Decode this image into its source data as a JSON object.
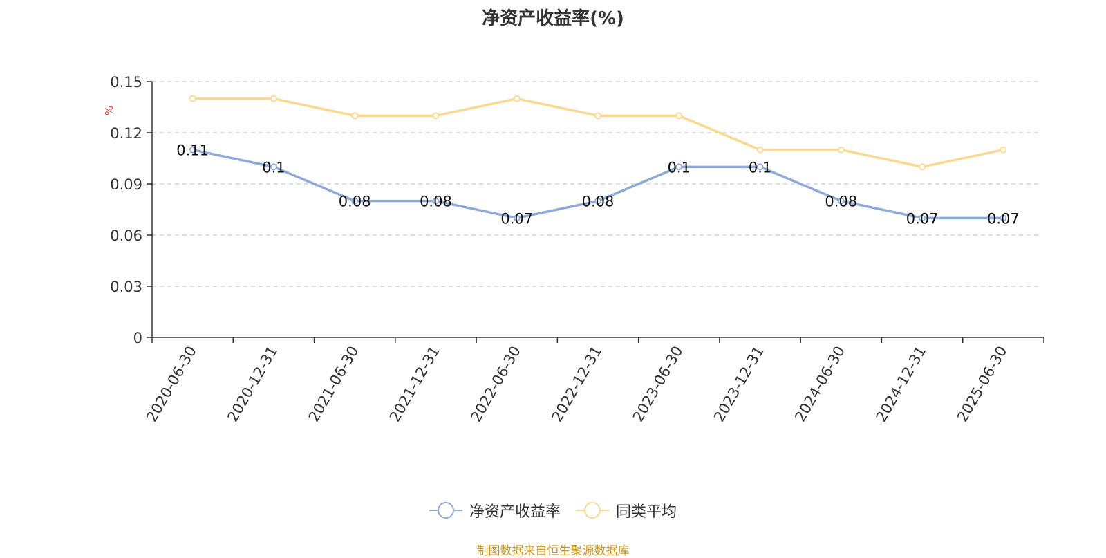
{
  "chart_data": {
    "type": "line",
    "title": "净资产收益率(%)",
    "ylabel": "%",
    "xlabel": "",
    "x": [
      "2020-06-30",
      "2020-12-31",
      "2021-06-30",
      "2021-12-31",
      "2022-06-30",
      "2022-12-31",
      "2023-06-30",
      "2023-12-31",
      "2024-06-30",
      "2024-12-31",
      "2025-06-30"
    ],
    "ylim": [
      0,
      0.15
    ],
    "yticks": [
      "0",
      "0.03",
      "0.06",
      "0.09",
      "0.12",
      "0.15"
    ],
    "grid": true,
    "legend_position": "bottom",
    "series": [
      {
        "name": "净资产收益率",
        "color": "#8eaad8",
        "values": [
          0.11,
          0.1,
          0.08,
          0.08,
          0.07,
          0.08,
          0.1,
          0.1,
          0.08,
          0.07,
          0.07
        ],
        "labels": [
          "0.11",
          "0.1",
          "0.08",
          "0.08",
          "0.07",
          "0.08",
          "0.1",
          "0.1",
          "0.08",
          "0.07",
          "0.07"
        ]
      },
      {
        "name": "同类平均",
        "color": "#fbd88f",
        "values": [
          0.14,
          0.14,
          0.13,
          0.13,
          0.14,
          0.13,
          0.13,
          0.11,
          0.11,
          0.1,
          0.11
        ]
      }
    ]
  },
  "source": "制图数据来自恒生聚源数据库"
}
